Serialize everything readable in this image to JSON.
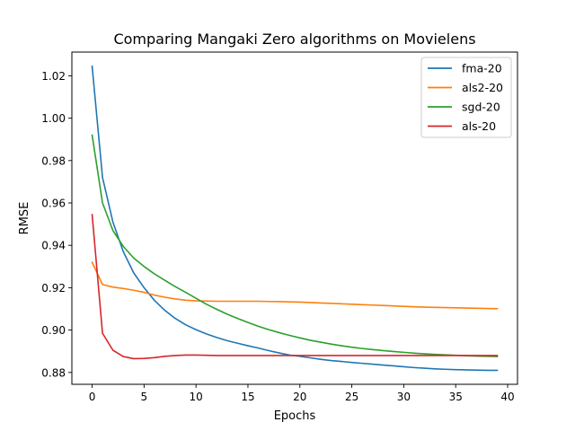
{
  "chart_data": {
    "type": "line",
    "title": "Comparing Mangaki Zero algorithms on Movielens",
    "xlabel": "Epochs",
    "ylabel": "RMSE",
    "xlim": [
      -1.95,
      40.95
    ],
    "ylim": [
      0.8744,
      1.0312
    ],
    "xticks": [
      0,
      5,
      10,
      15,
      20,
      25,
      30,
      35,
      40
    ],
    "yticks": [
      0.88,
      0.9,
      0.92,
      0.94,
      0.96,
      0.98,
      1.0,
      1.02
    ],
    "xtick_labels": [
      "0",
      "5",
      "10",
      "15",
      "20",
      "25",
      "30",
      "35",
      "40"
    ],
    "ytick_labels": [
      "0.88",
      "0.90",
      "0.92",
      "0.94",
      "0.96",
      "0.98",
      "1.00",
      "1.02"
    ],
    "grid": false,
    "legend_position": "upper right",
    "x": [
      0,
      1,
      2,
      3,
      4,
      5,
      6,
      7,
      8,
      9,
      10,
      11,
      12,
      13,
      14,
      15,
      16,
      17,
      18,
      19,
      20,
      21,
      22,
      23,
      24,
      25,
      26,
      27,
      28,
      29,
      30,
      31,
      32,
      33,
      34,
      35,
      36,
      37,
      38,
      39
    ],
    "series": [
      {
        "name": "fma-20",
        "color": "#1f77b4",
        "values": [
          1.0245,
          0.972,
          0.951,
          0.937,
          0.927,
          0.92,
          0.914,
          0.9093,
          0.9055,
          0.9025,
          0.9002,
          0.8982,
          0.8965,
          0.895,
          0.8938,
          0.8926,
          0.8915,
          0.8903,
          0.8892,
          0.8882,
          0.8876,
          0.8869,
          0.8862,
          0.8856,
          0.8852,
          0.8847,
          0.8843,
          0.8839,
          0.8835,
          0.8831,
          0.8827,
          0.8823,
          0.882,
          0.8817,
          0.8815,
          0.8813,
          0.8812,
          0.8811,
          0.881,
          0.881
        ]
      },
      {
        "name": "als2-20",
        "color": "#ff7f0e",
        "values": [
          0.932,
          0.9215,
          0.9203,
          0.9196,
          0.9188,
          0.9178,
          0.9165,
          0.9155,
          0.9147,
          0.9141,
          0.9138,
          0.9137,
          0.9136,
          0.9136,
          0.9136,
          0.9136,
          0.9136,
          0.9135,
          0.9134,
          0.9133,
          0.9132,
          0.913,
          0.9128,
          0.9126,
          0.9124,
          0.9122,
          0.912,
          0.9118,
          0.9116,
          0.9114,
          0.9112,
          0.911,
          0.9108,
          0.9107,
          0.9106,
          0.9105,
          0.9104,
          0.9103,
          0.9102,
          0.9101
        ]
      },
      {
        "name": "sgd-20",
        "color": "#2ca02c",
        "values": [
          0.992,
          0.96,
          0.947,
          0.9395,
          0.934,
          0.93,
          0.9265,
          0.9235,
          0.9205,
          0.9178,
          0.915,
          0.9122,
          0.9098,
          0.9075,
          0.9055,
          0.9036,
          0.9018,
          0.9002,
          0.8988,
          0.8975,
          0.8963,
          0.8952,
          0.8943,
          0.8934,
          0.8926,
          0.8919,
          0.8913,
          0.8908,
          0.8903,
          0.8899,
          0.8895,
          0.8891,
          0.8888,
          0.8885,
          0.8883,
          0.8881,
          0.8879,
          0.8877,
          0.8876,
          0.8875
        ]
      },
      {
        "name": "als-20",
        "color": "#d62728",
        "values": [
          0.9545,
          0.8985,
          0.8905,
          0.8875,
          0.8865,
          0.8866,
          0.887,
          0.8876,
          0.888,
          0.8882,
          0.8882,
          0.8881,
          0.888,
          0.888,
          0.888,
          0.888,
          0.888,
          0.888,
          0.888,
          0.888,
          0.888,
          0.888,
          0.888,
          0.888,
          0.888,
          0.888,
          0.888,
          0.888,
          0.888,
          0.888,
          0.888,
          0.888,
          0.888,
          0.888,
          0.888,
          0.888,
          0.888,
          0.888,
          0.888,
          0.888
        ]
      }
    ]
  }
}
